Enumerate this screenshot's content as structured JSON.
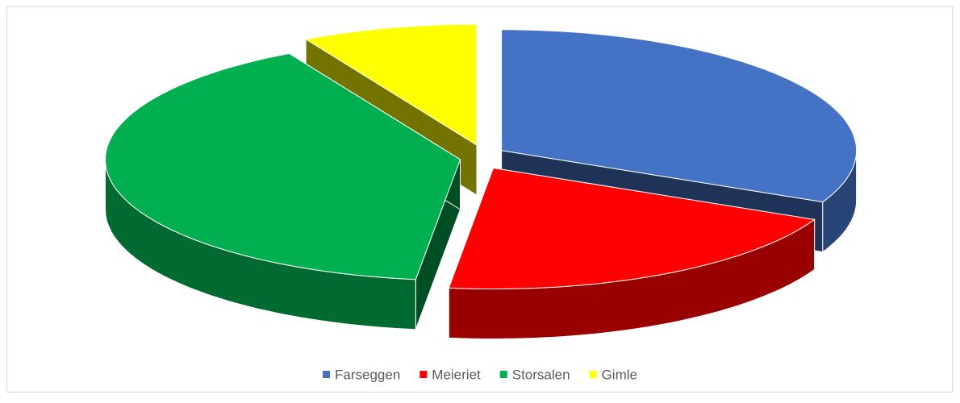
{
  "chart_data": {
    "type": "pie3d",
    "categories": [
      "Farseggen",
      "Meieriet",
      "Storsalen",
      "Gimle"
    ],
    "values": [
      32,
      20,
      40,
      8
    ],
    "colors": [
      "#4472c4",
      "#ff0000",
      "#00b050",
      "#ffff00"
    ],
    "exploded": true,
    "legend": "bottom"
  }
}
